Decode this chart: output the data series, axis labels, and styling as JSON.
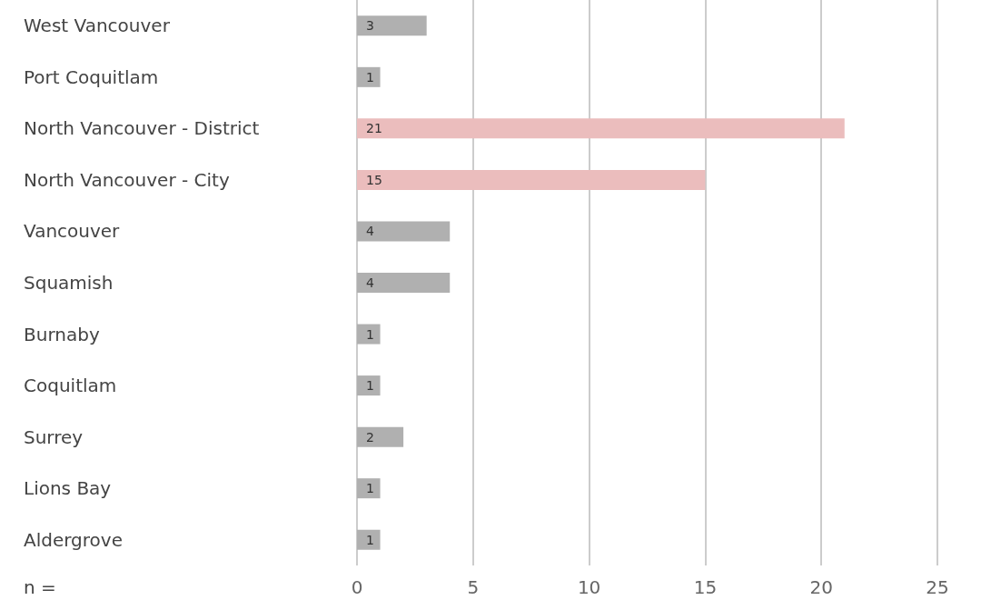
{
  "chart_data": {
    "type": "bar",
    "orientation": "horizontal",
    "xlabel": "n =",
    "categories": [
      "West Vancouver",
      "Port Coquitlam",
      "North Vancouver - District",
      "North Vancouver - City",
      "Vancouver",
      "Squamish",
      "Burnaby",
      "Coquitlam",
      "Surrey",
      "Lions Bay",
      "Aldergrove"
    ],
    "values": [
      3,
      1,
      21,
      15,
      4,
      4,
      1,
      1,
      2,
      1,
      1
    ],
    "colors": [
      "#b0b0b0",
      "#b0b0b0",
      "#ebbdbd",
      "#ebbdbd",
      "#b0b0b0",
      "#b0b0b0",
      "#b0b0b0",
      "#b0b0b0",
      "#b0b0b0",
      "#b0b0b0",
      "#b0b0b0"
    ],
    "xlim": [
      0,
      25
    ],
    "xticks": [
      0,
      5,
      10,
      15,
      20,
      25
    ],
    "grid": true,
    "data_labels": true
  }
}
